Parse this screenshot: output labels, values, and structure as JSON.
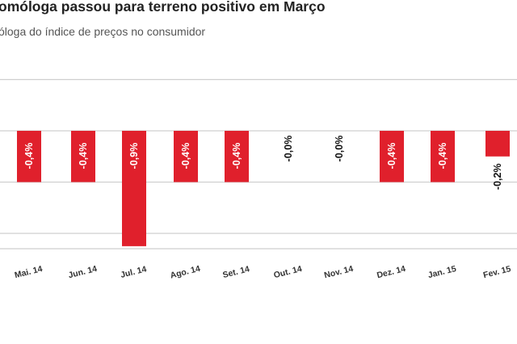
{
  "chart_data": {
    "type": "bar",
    "title": "omóloga passou para terreno positivo em Março",
    "subtitle": "óloga do índice de preços no consumidor",
    "categories": [
      "Mai. 14",
      "Jun. 14",
      "Jul. 14",
      "Ago. 14",
      "Set. 14",
      "Out. 14",
      "Nov. 14",
      "Dez. 14",
      "Jan. 15",
      "Fev. 15"
    ],
    "values": [
      -0.4,
      -0.4,
      -0.9,
      -0.4,
      -0.4,
      0.0,
      0.0,
      -0.4,
      -0.4,
      -0.2
    ],
    "data_labels": [
      "-0,4%",
      "-0,4%",
      "-0,9%",
      "-0,4%",
      "-0,4%",
      "-0,0%",
      "-0,0%",
      "-0,4%",
      "-0,4%",
      "-0,2%"
    ],
    "ylim": [
      -0.9,
      0.4
    ],
    "grid": true,
    "colors": {
      "bar": "#e0202c",
      "label_inside": "#ffffff",
      "label_outside": "#111111",
      "grid": "#cfcfcf"
    }
  }
}
